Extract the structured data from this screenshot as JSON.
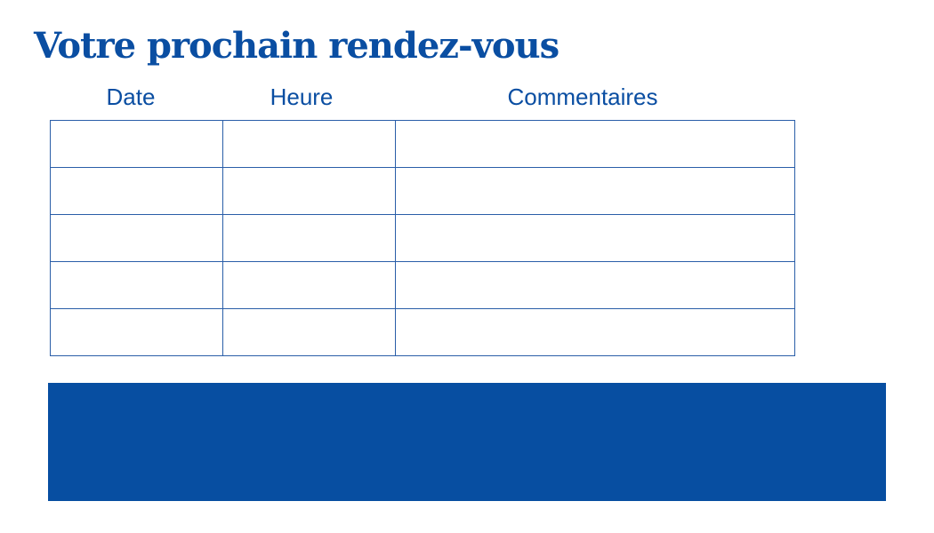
{
  "title": "Votre prochain rendez-vous",
  "columns": [
    "Date",
    "Heure",
    "Commentaires"
  ],
  "rows": 5,
  "colors": {
    "brand": "#074ea1"
  }
}
